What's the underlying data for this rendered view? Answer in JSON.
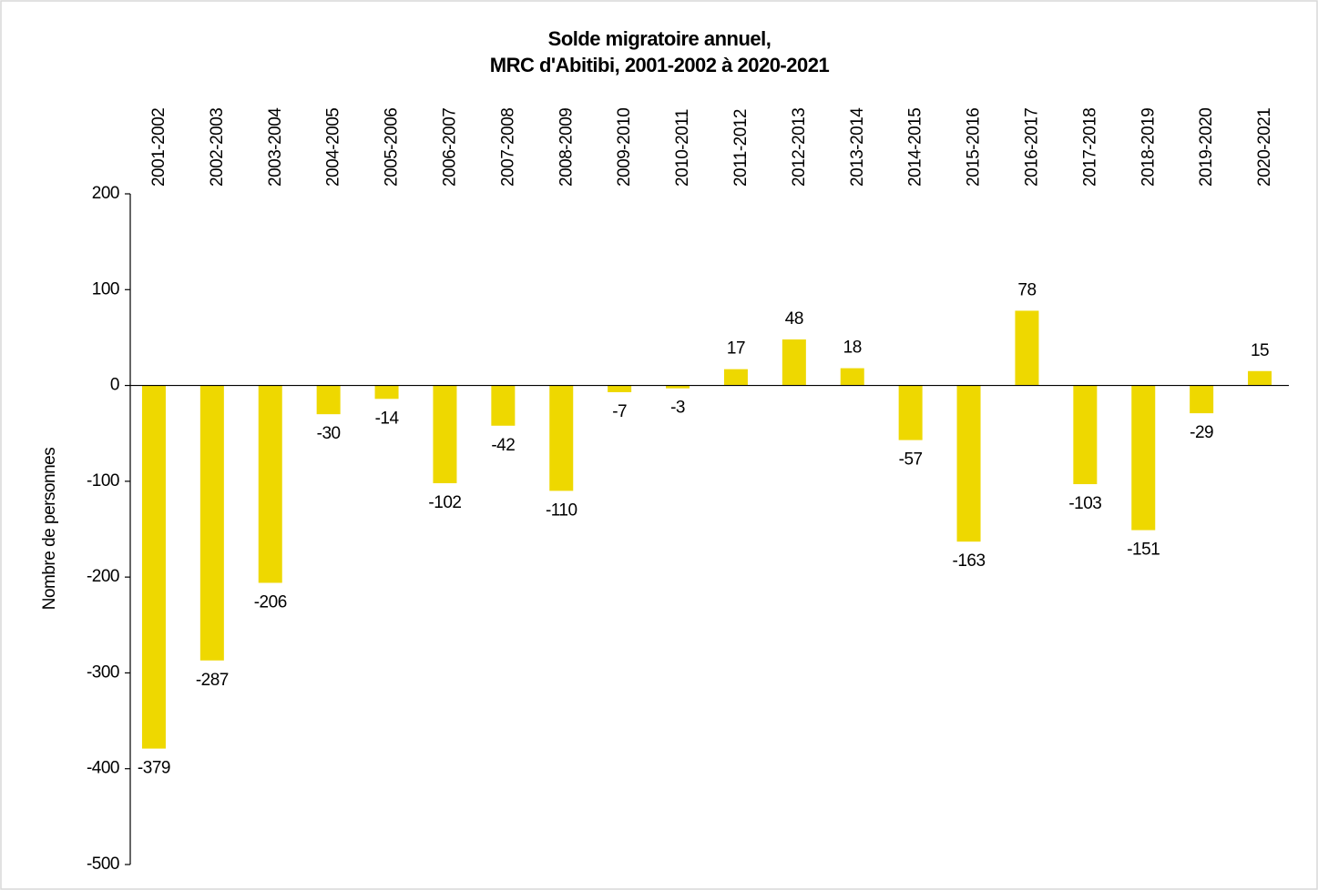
{
  "chart_data": {
    "type": "bar",
    "title": [
      "Solde migratoire annuel,",
      "MRC d'Abitibi, 2001-2002 à 2020-2021"
    ],
    "y_label": "Nombre de personnes",
    "categories": [
      "2001-2002",
      "2002-2003",
      "2003-2004",
      "2004-2005",
      "2005-2006",
      "2006-2007",
      "2007-2008",
      "2008-2009",
      "2009-2010",
      "2010-2011",
      "2011-2012",
      "2012-2013",
      "2013-2014",
      "2014-2015",
      "2015-2016",
      "2016-2017",
      "2017-2018",
      "2018-2019",
      "2019-2020",
      "2020-2021"
    ],
    "values": [
      -379,
      -287,
      -206,
      -30,
      -14,
      -102,
      -42,
      -110,
      -7,
      -3,
      17,
      48,
      18,
      -57,
      -163,
      78,
      -103,
      -151,
      -29,
      15
    ],
    "color": "#eed800",
    "ylim": [
      -500,
      200
    ],
    "yticks": [
      -500,
      -400,
      -300,
      -200,
      -100,
      0,
      100,
      200
    ],
    "grid": false
  }
}
